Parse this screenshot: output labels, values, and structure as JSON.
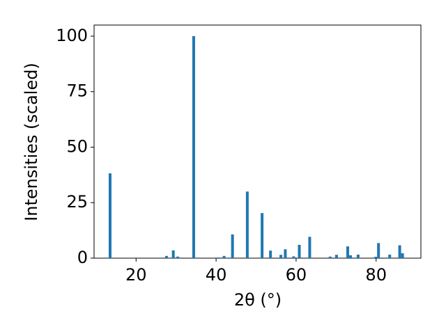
{
  "chart_data": {
    "type": "bar",
    "xlabel": "2θ (°)",
    "ylabel": "Intensities (scaled)",
    "x": [
      13.5,
      27.6,
      29.3,
      30.4,
      34.4,
      40.6,
      42.0,
      44.1,
      47.8,
      51.5,
      53.6,
      56.2,
      57.3,
      59.4,
      60.8,
      63.4,
      68.5,
      70.1,
      72.9,
      73.6,
      75.5,
      79.9,
      80.6,
      83.4,
      85.9,
      86.6
    ],
    "values": [
      38.2,
      1,
      3.5,
      0.7,
      100,
      0.3,
      1,
      10.7,
      30,
      20.3,
      3.4,
      1.5,
      4,
      0.8,
      6,
      9.6,
      0.7,
      1.5,
      5.3,
      1.3,
      1.6,
      0.6,
      6.8,
      1.6,
      5.8,
      2.2
    ],
    "color": "#1f77b4",
    "xlim": [
      9.5,
      91.2
    ],
    "xticks": [
      20,
      40,
      60,
      80
    ],
    "ylim": [
      0,
      105
    ],
    "yticks": [
      0,
      25,
      50,
      75,
      100
    ],
    "grid": false
  }
}
